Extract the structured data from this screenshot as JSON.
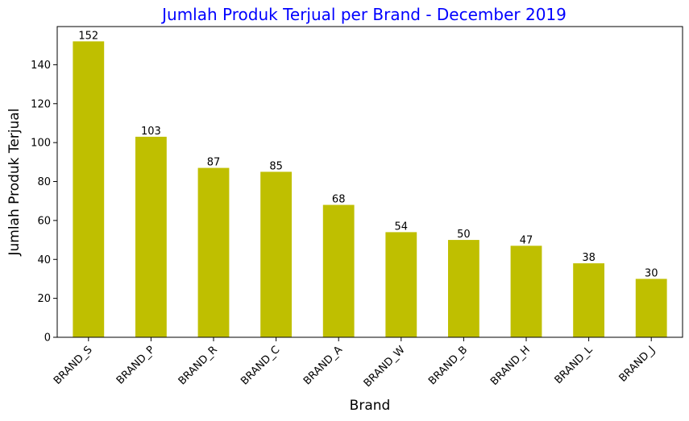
{
  "chart_data": {
    "type": "bar",
    "title": "Jumlah Produk Terjual per Brand - December 2019",
    "xlabel": "Brand",
    "ylabel": "Jumlah Produk Terjual",
    "categories": [
      "BRAND_S",
      "BRAND_P",
      "BRAND_R",
      "BRAND_C",
      "BRAND_A",
      "BRAND_W",
      "BRAND_B",
      "BRAND_H",
      "BRAND_L",
      "BRAND_J"
    ],
    "values": [
      152,
      103,
      87,
      85,
      68,
      54,
      50,
      47,
      38,
      30
    ],
    "data_labels": [
      "152",
      "103",
      "87",
      "85",
      "68",
      "54",
      "50",
      "47",
      "38",
      "30"
    ],
    "yticks": [
      "0",
      "20",
      "40",
      "60",
      "80",
      "100",
      "120",
      "140"
    ],
    "ylim": [
      0,
      159.6
    ],
    "grid": false,
    "legend": "none",
    "colors": {
      "bar": "#bfbf00",
      "title": "#0000ff",
      "axis": "#000000"
    }
  }
}
